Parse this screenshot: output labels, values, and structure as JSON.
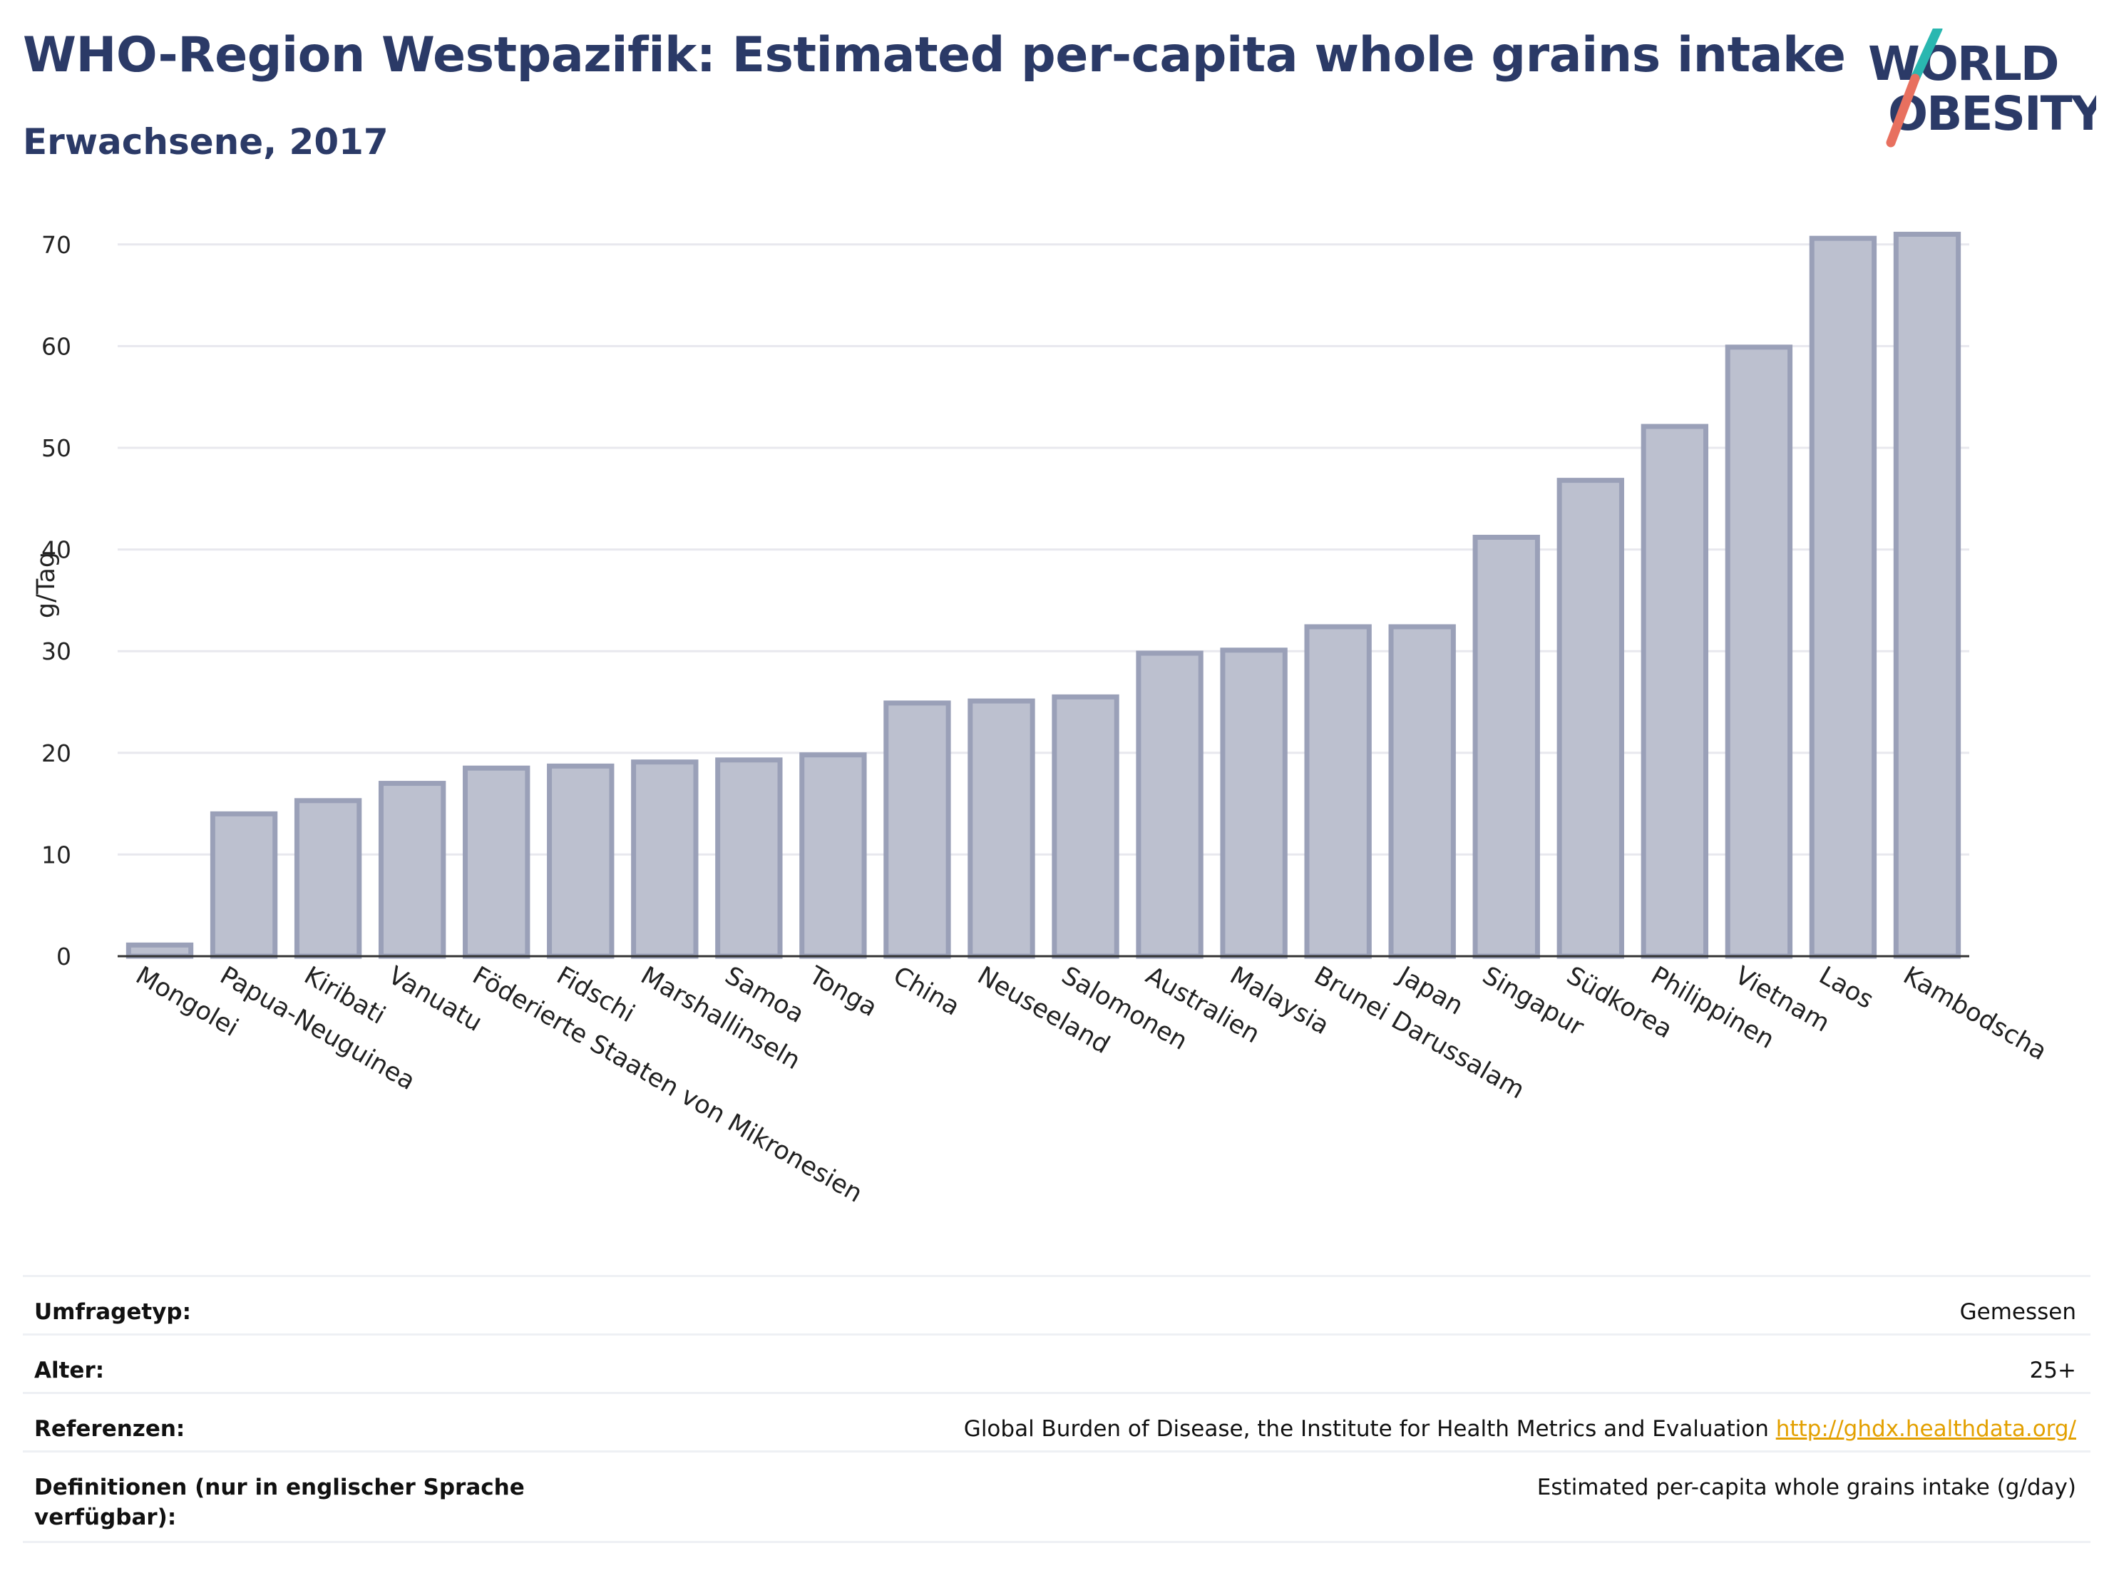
{
  "header": {
    "title": "WHO-Region Westpazifik: Estimated per-capita whole grains intake",
    "subtitle": "Erwachsene, 2017"
  },
  "logo": {
    "line1": "WORLD",
    "line2": "OBESITY",
    "accent_teal": "#2ab7b0",
    "accent_coral": "#e8705f",
    "text_color": "#2b3a67"
  },
  "chart_data": {
    "type": "bar",
    "title": "WHO-Region Westpazifik: Estimated per-capita whole grains intake",
    "subtitle": "Erwachsene, 2017",
    "xlabel": "",
    "ylabel": "g/Tag",
    "ylim": [
      0,
      73
    ],
    "yticks": [
      0,
      10,
      20,
      30,
      40,
      50,
      60,
      70
    ],
    "grid": true,
    "bar_fill": "#bcc0cf",
    "bar_stroke": "#9aa0b8",
    "categories": [
      "Mongolei",
      "Papua-Neuguinea",
      "Kiribati",
      "Vanuatu",
      "Föderierte Staaten von Mikronesien",
      "Fidschi",
      "Marshallinseln",
      "Samoa",
      "Tonga",
      "China",
      "Neuseeland",
      "Salomonen",
      "Australien",
      "Malaysia",
      "Brunei Darussalam",
      "Japan",
      "Singapur",
      "Südkorea",
      "Philippinen",
      "Vietnam",
      "Laos",
      "Kambodscha"
    ],
    "values": [
      1.1,
      14.0,
      15.3,
      17.0,
      18.5,
      18.7,
      19.1,
      19.3,
      19.8,
      24.9,
      25.1,
      25.5,
      29.8,
      30.1,
      32.4,
      32.4,
      41.2,
      46.8,
      52.1,
      59.9,
      70.6,
      71.0
    ]
  },
  "info_table": [
    {
      "label": "Umfragetyp:",
      "value": "Gemessen",
      "link": ""
    },
    {
      "label": "Alter:",
      "value": "25+",
      "link": ""
    },
    {
      "label": "Referenzen:",
      "value": "Global Burden of Disease, the Institute for Health Metrics and Evaluation",
      "link": "http://ghdx.healthdata.org/"
    },
    {
      "label": "Definitionen (nur in englischer Sprache verfügbar):",
      "value": "Estimated per-capita whole grains intake (g/day)",
      "link": ""
    }
  ]
}
